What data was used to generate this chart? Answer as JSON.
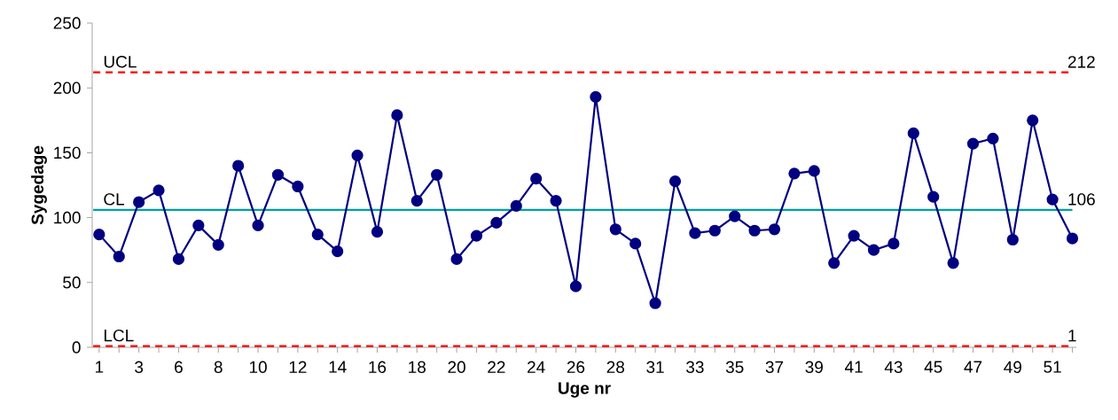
{
  "chart_data": {
    "type": "line",
    "xlabel": "Uge nr",
    "ylabel": "Sygedage",
    "categories": [
      "1",
      null,
      "3",
      null,
      "6",
      null,
      "8",
      null,
      "10",
      null,
      "12",
      null,
      "14",
      null,
      "16",
      null,
      "18",
      null,
      "20",
      null,
      "22",
      null,
      "24",
      null,
      "26",
      null,
      "28",
      null,
      "31",
      null,
      "33",
      null,
      "35",
      null,
      "37",
      null,
      "39",
      null,
      "41",
      null,
      "43",
      null,
      "45",
      null,
      "47",
      null,
      "49",
      null,
      "51",
      null
    ],
    "series": [
      {
        "color": "#000080",
        "values": [
          87,
          70,
          112,
          121,
          68,
          94,
          79,
          140,
          94,
          133,
          124,
          87,
          74,
          148,
          89,
          179,
          113,
          133,
          68,
          86,
          96,
          109,
          130,
          113,
          47,
          193,
          91,
          80,
          34,
          128,
          88,
          90,
          101,
          90,
          91,
          134,
          136,
          65,
          86,
          75,
          80,
          165,
          116,
          65,
          157,
          161,
          83,
          175,
          114,
          84
        ]
      }
    ],
    "ylim": [
      0,
      250
    ],
    "yticks": [
      0,
      50,
      100,
      150,
      200,
      250
    ],
    "ref_lines": [
      {
        "axis": "y",
        "value": 212,
        "label": "UCL",
        "color": "#ff0000",
        "line_style": "dashed"
      },
      {
        "axis": "y",
        "value": 106,
        "label": "CL",
        "color": "#00a0a0",
        "line_style": "solid"
      },
      {
        "axis": "y",
        "value": 1,
        "label": "LCL",
        "color": "#ff0000",
        "line_style": "dashed"
      }
    ],
    "annotations": [
      "212",
      "106",
      "1"
    ],
    "marker": "circle",
    "line_style": "solid",
    "grid": false
  }
}
